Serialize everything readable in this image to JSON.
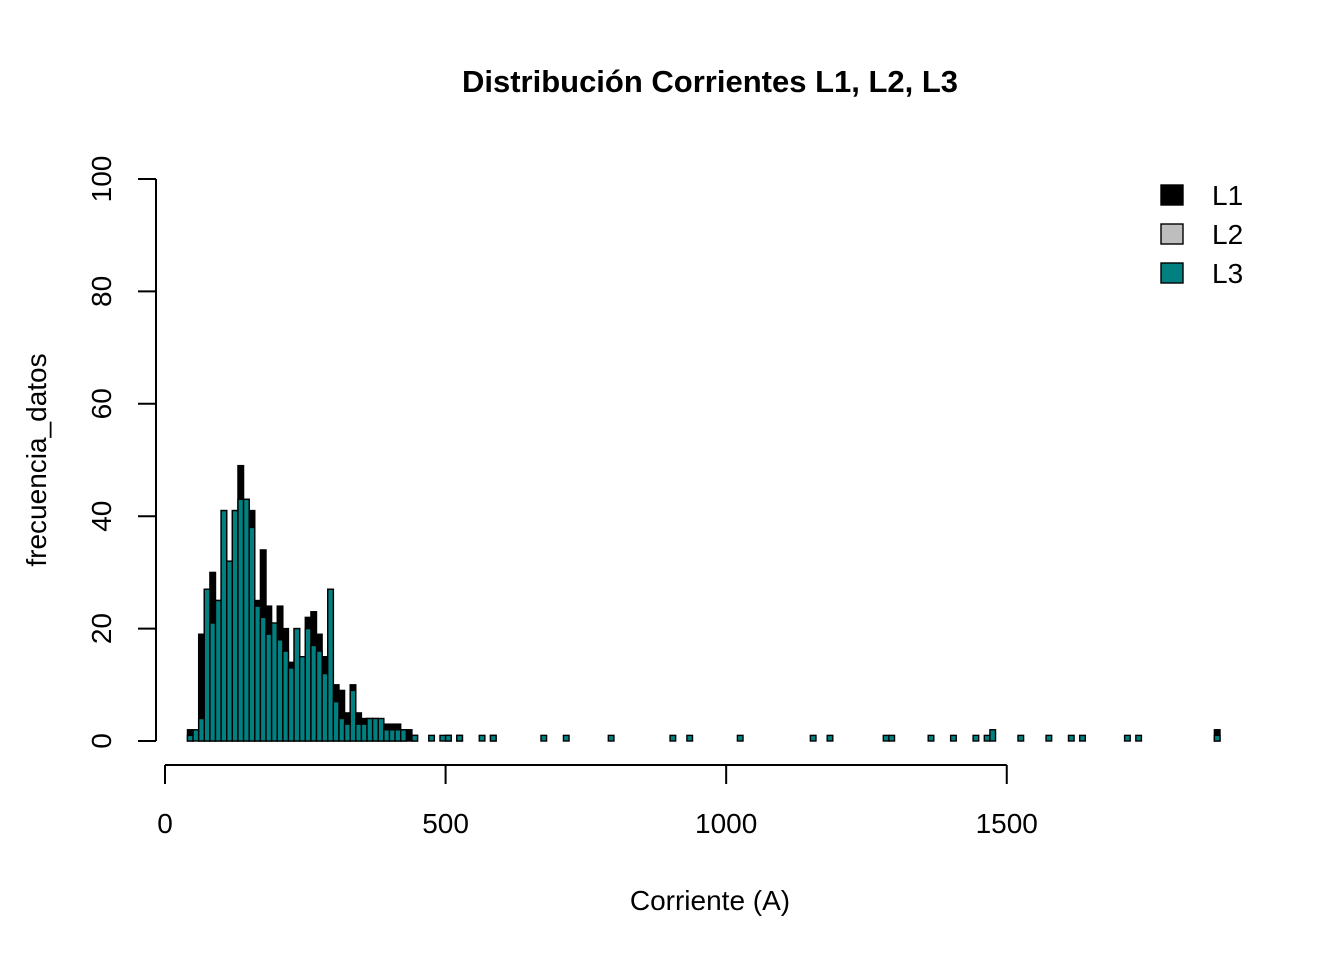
{
  "chart_data": {
    "type": "bar",
    "title": "Distribución Corrientes L1, L2, L3",
    "xlabel": "Corriente (A)",
    "ylabel": "frecuencia_datos",
    "xlim": [
      0,
      1880
    ],
    "ylim": [
      0,
      100
    ],
    "x_ticks": [
      0,
      500,
      1000,
      1500
    ],
    "y_ticks": [
      0,
      20,
      40,
      60,
      80,
      100
    ],
    "x_tick_labels": [
      "0",
      "500",
      "1000",
      "1500"
    ],
    "y_tick_labels": [
      "0",
      "20",
      "40",
      "60",
      "80",
      "100"
    ],
    "bin_width": 10,
    "legend_position": "top-right",
    "grid": false,
    "series": [
      {
        "name": "L1",
        "color": "#000000",
        "points": [
          [
            40,
            2
          ],
          [
            60,
            19
          ],
          [
            70,
            27
          ],
          [
            80,
            30
          ],
          [
            90,
            25
          ],
          [
            100,
            41
          ],
          [
            110,
            32
          ],
          [
            120,
            41
          ],
          [
            130,
            49
          ],
          [
            140,
            43
          ],
          [
            150,
            41
          ],
          [
            160,
            25
          ],
          [
            170,
            34
          ],
          [
            180,
            24
          ],
          [
            190,
            20
          ],
          [
            200,
            24
          ],
          [
            210,
            20
          ],
          [
            220,
            14
          ],
          [
            230,
            20
          ],
          [
            240,
            15
          ],
          [
            250,
            22
          ],
          [
            260,
            23
          ],
          [
            270,
            19
          ],
          [
            280,
            15
          ],
          [
            290,
            27
          ],
          [
            300,
            10
          ],
          [
            310,
            9
          ],
          [
            320,
            5
          ],
          [
            330,
            10
          ],
          [
            340,
            5
          ],
          [
            350,
            4
          ],
          [
            360,
            4
          ],
          [
            370,
            4
          ],
          [
            380,
            3
          ],
          [
            390,
            3
          ],
          [
            400,
            3
          ],
          [
            410,
            3
          ],
          [
            420,
            2
          ],
          [
            430,
            2
          ],
          [
            440,
            1
          ],
          [
            500,
            1
          ],
          [
            520,
            1
          ],
          [
            580,
            1
          ],
          [
            1870,
            2
          ]
        ]
      },
      {
        "name": "L2",
        "color": "#bebebe",
        "points": []
      },
      {
        "name": "L3",
        "color": "#008080",
        "points": [
          [
            40,
            1
          ],
          [
            50,
            2
          ],
          [
            60,
            4
          ],
          [
            70,
            27
          ],
          [
            80,
            21
          ],
          [
            90,
            25
          ],
          [
            100,
            41
          ],
          [
            110,
            32
          ],
          [
            120,
            41
          ],
          [
            130,
            43
          ],
          [
            140,
            43
          ],
          [
            150,
            38
          ],
          [
            160,
            24
          ],
          [
            170,
            22
          ],
          [
            180,
            19
          ],
          [
            190,
            21
          ],
          [
            200,
            18
          ],
          [
            210,
            16
          ],
          [
            220,
            13
          ],
          [
            230,
            20
          ],
          [
            240,
            15
          ],
          [
            250,
            20
          ],
          [
            260,
            17
          ],
          [
            270,
            16
          ],
          [
            280,
            12
          ],
          [
            290,
            27
          ],
          [
            300,
            7
          ],
          [
            310,
            4
          ],
          [
            320,
            3
          ],
          [
            330,
            9
          ],
          [
            340,
            3
          ],
          [
            350,
            3
          ],
          [
            360,
            4
          ],
          [
            370,
            4
          ],
          [
            380,
            4
          ],
          [
            390,
            2
          ],
          [
            400,
            2
          ],
          [
            410,
            2
          ],
          [
            420,
            2
          ],
          [
            440,
            1
          ],
          [
            470,
            1
          ],
          [
            490,
            1
          ],
          [
            500,
            1
          ],
          [
            520,
            1
          ],
          [
            560,
            1
          ],
          [
            580,
            1
          ],
          [
            670,
            1
          ],
          [
            710,
            1
          ],
          [
            790,
            1
          ],
          [
            900,
            1
          ],
          [
            930,
            1
          ],
          [
            1020,
            1
          ],
          [
            1150,
            1
          ],
          [
            1180,
            1
          ],
          [
            1280,
            1
          ],
          [
            1290,
            1
          ],
          [
            1360,
            1
          ],
          [
            1400,
            1
          ],
          [
            1440,
            1
          ],
          [
            1460,
            1
          ],
          [
            1470,
            2
          ],
          [
            1520,
            1
          ],
          [
            1570,
            1
          ],
          [
            1610,
            1
          ],
          [
            1630,
            1
          ],
          [
            1710,
            1
          ],
          [
            1730,
            1
          ],
          [
            1870,
            1
          ]
        ]
      }
    ]
  }
}
